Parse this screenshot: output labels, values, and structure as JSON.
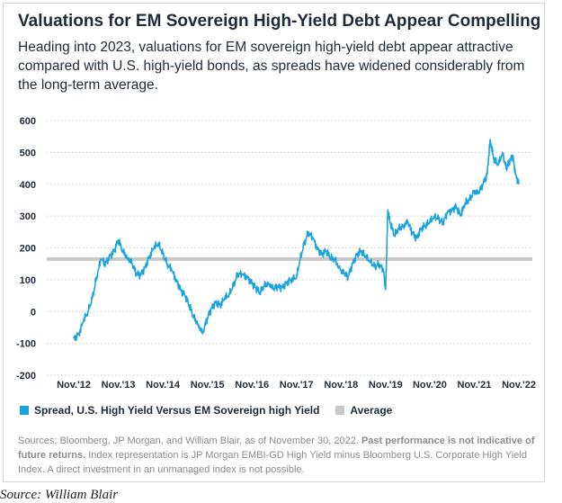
{
  "title": "Valuations for EM Sovereign High-Yield Debt Appear Compelling",
  "subtitle": "Heading into 2023, valuations for EM sovereign high-yield debt appear attractive compared with U.S. high-yield bonds, as spreads have widened considerably from the long-term average.",
  "notes": {
    "text1": "Sources: Bloomberg, JP Morgan, and William Blair, as of November 30, 2022. ",
    "bold": "Past performance is not indicative of future returns.",
    "text2": " Index representation is JP Morgan EMBI-GD High Yield minus Bloomberg U.S. Corporate High Yield Index. A direct investment in an unmanaged index is not possible."
  },
  "source_caption": "Source: William Blair",
  "colors": {
    "series": "#1aa3dc",
    "average": "#c8c8c8",
    "text": "#1e2a38",
    "grid": "#cfcfcf"
  },
  "chart_data": {
    "type": "line",
    "ylim": [
      -200,
      600
    ],
    "yticks": [
      "600",
      "500",
      "400",
      "300",
      "200",
      "100",
      "0",
      "-100",
      "-200"
    ],
    "ytick_values": [
      600,
      500,
      400,
      300,
      200,
      100,
      0,
      -100,
      -200
    ],
    "xlim": [
      2012.83,
      2022.92
    ],
    "xticks": [
      "Nov.'12",
      "Nov.'13",
      "Nov.'14",
      "Nov.'15",
      "Nov.'16",
      "Nov.'17",
      "Nov.'18",
      "Nov.'19",
      "Nov.'20",
      "Nov.'21",
      "Nov.'22"
    ],
    "xtick_values": [
      2012.83,
      2013.84,
      2014.85,
      2015.86,
      2016.87,
      2017.88,
      2018.89,
      2019.9,
      2020.9,
      2021.91,
      2022.92
    ],
    "grid": true,
    "legend_position": "bottom-left",
    "series": [
      {
        "name": "Spread, U.S. High Yield Versus EM Sovereign high Yield",
        "x": [
          2012.83,
          2012.95,
          2013.05,
          2013.15,
          2013.25,
          2013.35,
          2013.45,
          2013.55,
          2013.65,
          2013.75,
          2013.84,
          2013.95,
          2014.05,
          2014.15,
          2014.25,
          2014.35,
          2014.45,
          2014.55,
          2014.65,
          2014.75,
          2014.85,
          2014.95,
          2015.05,
          2015.15,
          2015.25,
          2015.35,
          2015.45,
          2015.55,
          2015.65,
          2015.75,
          2015.86,
          2015.95,
          2016.05,
          2016.15,
          2016.25,
          2016.35,
          2016.45,
          2016.55,
          2016.65,
          2016.75,
          2016.87,
          2016.95,
          2017.05,
          2017.15,
          2017.25,
          2017.35,
          2017.45,
          2017.55,
          2017.65,
          2017.75,
          2017.88,
          2017.95,
          2018.05,
          2018.15,
          2018.25,
          2018.35,
          2018.45,
          2018.55,
          2018.65,
          2018.75,
          2018.89,
          2018.95,
          2019.05,
          2019.15,
          2019.25,
          2019.35,
          2019.45,
          2019.55,
          2019.65,
          2019.75,
          2019.85,
          2019.9,
          2019.95,
          2020.0,
          2020.1,
          2020.2,
          2020.3,
          2020.4,
          2020.5,
          2020.6,
          2020.7,
          2020.8,
          2020.9,
          2021.0,
          2021.1,
          2021.2,
          2021.3,
          2021.4,
          2021.5,
          2021.6,
          2021.7,
          2021.8,
          2021.91,
          2022.0,
          2022.1,
          2022.2,
          2022.27,
          2022.35,
          2022.45,
          2022.55,
          2022.63,
          2022.7,
          2022.78,
          2022.85,
          2022.92
        ],
        "values": [
          -85,
          -70,
          -30,
          0,
          40,
          110,
          165,
          150,
          175,
          190,
          225,
          185,
          170,
          150,
          120,
          115,
          140,
          175,
          200,
          215,
          180,
          150,
          130,
          100,
          70,
          50,
          20,
          -20,
          -40,
          -70,
          -20,
          10,
          30,
          20,
          40,
          55,
          80,
          120,
          115,
          110,
          90,
          75,
          60,
          80,
          90,
          70,
          80,
          75,
          90,
          100,
          105,
          160,
          210,
          250,
          230,
          200,
          180,
          190,
          170,
          160,
          130,
          120,
          110,
          150,
          180,
          190,
          170,
          160,
          140,
          150,
          130,
          70,
          320,
          280,
          240,
          260,
          270,
          280,
          250,
          230,
          260,
          270,
          280,
          300,
          290,
          280,
          310,
          320,
          330,
          300,
          340,
          350,
          380,
          370,
          400,
          430,
          540,
          480,
          460,
          500,
          450,
          470,
          490,
          430,
          400
        ]
      },
      {
        "name": "Average",
        "x": [
          2012.83,
          2022.92
        ],
        "values": [
          165,
          165
        ]
      }
    ]
  }
}
